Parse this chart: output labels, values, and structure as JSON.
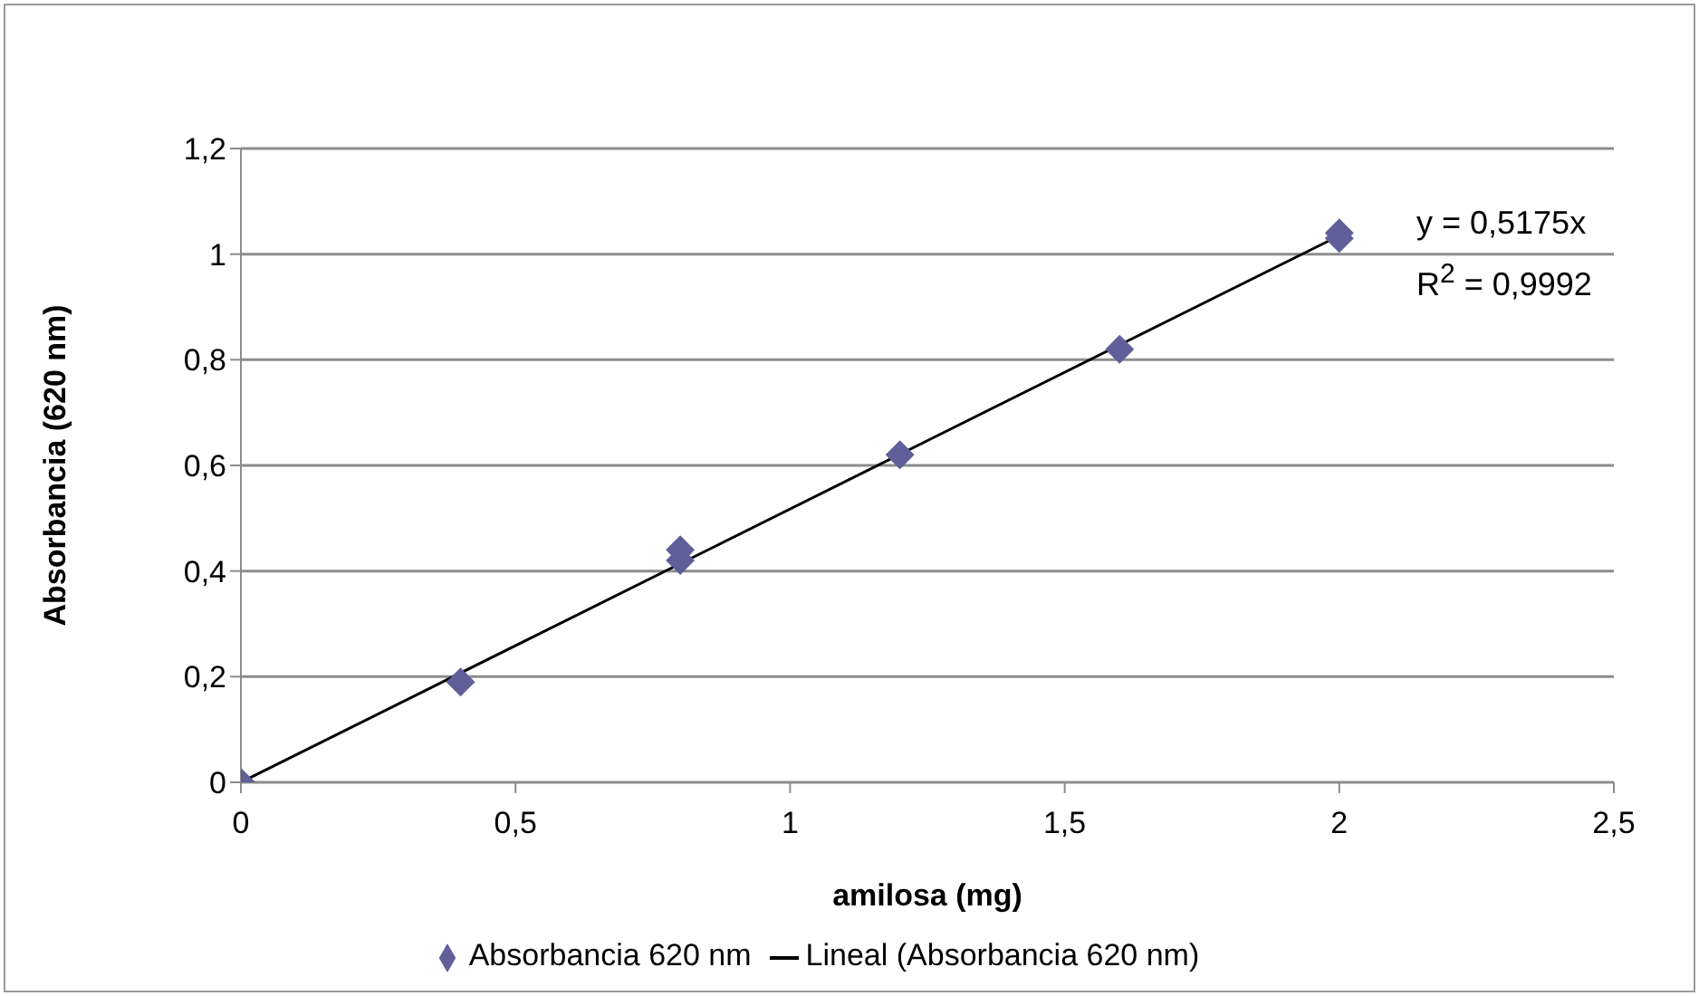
{
  "chart_data": {
    "type": "scatter",
    "xlabel": "amilosa (mg)",
    "ylabel": "Absorbancia (620 nm)",
    "xlim": [
      0,
      2.5
    ],
    "xticks": [
      0,
      {
        "value": 0.5,
        "label": "0,5"
      },
      1,
      {
        "value": 1.5,
        "label": "1,5"
      },
      2,
      {
        "value": 2.5,
        "label": "2,5"
      }
    ],
    "ylim": [
      0,
      1.2
    ],
    "yticks": [
      0,
      {
        "value": 0.2,
        "label": "0,2"
      },
      {
        "value": 0.4,
        "label": "0,4"
      },
      {
        "value": 0.6,
        "label": "0,6"
      },
      {
        "value": 0.8,
        "label": "0,8"
      },
      1,
      {
        "value": 1.2,
        "label": "1,2"
      }
    ],
    "grid": "y",
    "legend": "bottom",
    "series": [
      {
        "name": "Absorbancia 620 nm",
        "marker": "diamond",
        "color": "#5f5f9a",
        "x": [
          0,
          0.4,
          0.8,
          0.8,
          1.2,
          1.6,
          2,
          2
        ],
        "values": [
          0,
          0.19,
          0.42,
          0.44,
          0.62,
          0.82,
          1.03,
          1.04
        ]
      },
      {
        "name": "Lineal (Absorbancia 620 nm)",
        "type": "line",
        "marker": "none",
        "color": "#000000",
        "x": [
          0,
          2
        ],
        "values": [
          0,
          1.035
        ]
      }
    ],
    "annotations": [
      "y = 0,5175x",
      "R$^{2}$ = 0,9992"
    ]
  }
}
